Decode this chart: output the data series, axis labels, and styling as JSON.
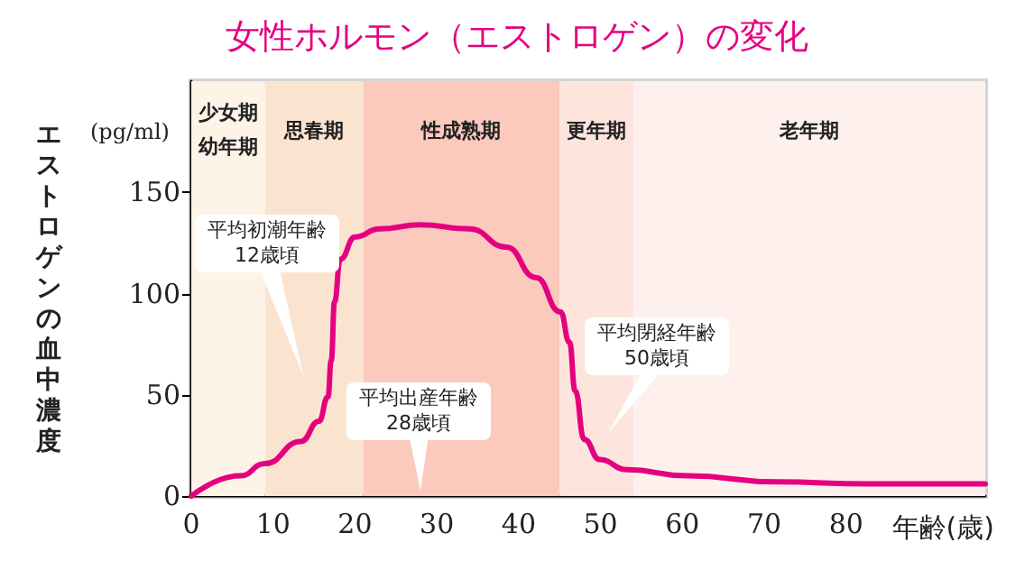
{
  "chart_data": {
    "type": "line",
    "title": "女性ホルモン（エストロゲン）の変化",
    "xlabel": "年齢(歳)",
    "ylabel": "エストロゲンの血中濃度",
    "x": [
      0,
      6,
      9,
      13.4,
      15.6,
      16.7,
      17.1,
      17.5,
      18.2,
      20,
      23,
      28,
      34,
      38.5,
      42.1,
      45.1,
      46.2,
      46.9,
      48,
      49.9,
      53.2,
      60.6,
      71.6,
      82.7,
      97
    ],
    "series": [
      {
        "color": "#e4007f",
        "values": [
          0,
          10,
          16,
          27,
          37,
          49,
          67,
          96,
          117,
          128,
          132,
          134,
          132,
          123,
          108,
          91,
          76,
          52,
          28,
          18,
          13,
          10,
          7,
          6,
          6
        ]
      }
    ],
    "xlim": [
      0,
      97
    ],
    "xticks": [
      0,
      10,
      20,
      30,
      40,
      50,
      60,
      70,
      80
    ],
    "ylim": [
      0,
      205
    ],
    "yticks": [
      0,
      50,
      100,
      150
    ],
    "grid": false,
    "marker": "none",
    "line_style": "solid",
    "bands": [
      {
        "axis": "x",
        "from": 0,
        "to": 9,
        "label": "少女期幼年期",
        "color": "#fdf3e7"
      },
      {
        "axis": "x",
        "from": 9,
        "to": 21,
        "label": "思春期",
        "color": "#fbe4cf"
      },
      {
        "axis": "x",
        "from": 21,
        "to": 45,
        "label": "性成熟期",
        "color": "#fbcabd"
      },
      {
        "axis": "x",
        "from": 45,
        "to": 54,
        "label": "更年期",
        "color": "#fde4dc"
      },
      {
        "axis": "x",
        "from": 54,
        "to": 97,
        "label": "老年期",
        "color": "#fdf0ed"
      }
    ],
    "annotations": [
      "(pg/ml)",
      "平均初潮年齢\n12歳頃",
      "平均出産年齢\n28歳頃",
      "平均閉経年齢\n50歳頃"
    ]
  }
}
